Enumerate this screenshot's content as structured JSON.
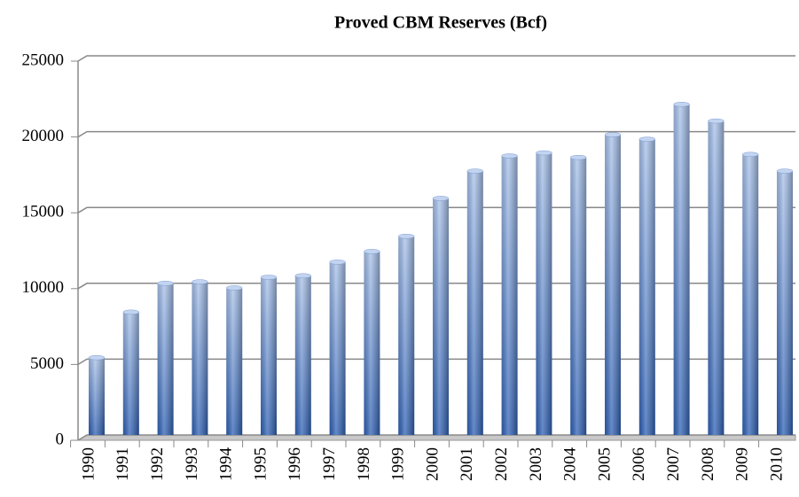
{
  "chart_data": {
    "type": "bar",
    "title": "Proved CBM Reserves (Bcf)",
    "categories": [
      "1990",
      "1991",
      "1992",
      "1993",
      "1994",
      "1995",
      "1996",
      "1997",
      "1998",
      "1999",
      "2000",
      "2001",
      "2002",
      "2003",
      "2004",
      "2005",
      "2006",
      "2007",
      "2008",
      "2009",
      "2010"
    ],
    "values": [
      5100,
      8100,
      10000,
      10100,
      9700,
      10400,
      10500,
      11400,
      12100,
      13100,
      15600,
      17400,
      18400,
      18600,
      18300,
      19800,
      19500,
      21800,
      20700,
      18500,
      17400
    ],
    "color": "#4f7fc9",
    "ylim": [
      0,
      25000
    ],
    "yticks": [
      0,
      5000,
      10000,
      15000,
      20000,
      25000
    ],
    "grid": true
  }
}
